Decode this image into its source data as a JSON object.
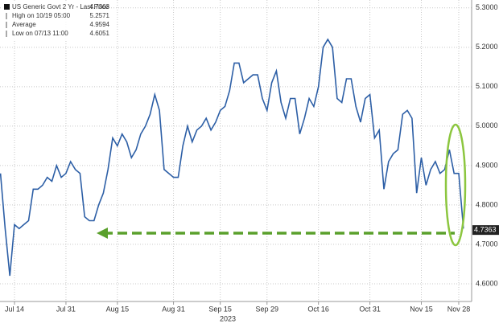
{
  "chart_data": {
    "type": "line",
    "legend": [
      {
        "label": "US Generic Govt 2 Yr - Last Price",
        "value": "4.7363"
      },
      {
        "label": "High on 10/19 05:00",
        "value": "5.2571"
      },
      {
        "label": "Average",
        "value": "4.9594"
      },
      {
        "label": "Low on 07/13 11:00",
        "value": "4.6051"
      }
    ],
    "categories": [
      null,
      null,
      null,
      "Jul 14",
      null,
      null,
      null,
      null,
      null,
      null,
      null,
      null,
      null,
      null,
      "Jul 31",
      null,
      null,
      null,
      null,
      null,
      null,
      null,
      null,
      null,
      null,
      "Aug 15",
      null,
      null,
      null,
      null,
      null,
      null,
      null,
      null,
      null,
      null,
      null,
      "Aug 31",
      null,
      null,
      null,
      null,
      null,
      null,
      null,
      null,
      null,
      "Sep 15",
      null,
      null,
      null,
      null,
      null,
      null,
      null,
      null,
      null,
      "Sep 29",
      null,
      null,
      null,
      null,
      null,
      null,
      null,
      null,
      null,
      null,
      "Oct 16",
      null,
      null,
      null,
      null,
      null,
      null,
      null,
      null,
      null,
      null,
      "Oct 31",
      null,
      null,
      null,
      null,
      null,
      null,
      null,
      null,
      null,
      null,
      "Nov 15",
      null,
      null,
      null,
      null,
      null,
      null,
      null,
      "Nov 28",
      null
    ],
    "x_year_label": "2023",
    "series": [
      {
        "name": "US Generic Govt 2 Yr - Last Price",
        "color": "#2d5fa6",
        "values": [
          4.88,
          4.74,
          4.62,
          4.75,
          4.74,
          4.75,
          4.76,
          4.84,
          4.84,
          4.85,
          4.87,
          4.86,
          4.9,
          4.87,
          4.88,
          4.91,
          4.89,
          4.88,
          4.77,
          4.76,
          4.76,
          4.8,
          4.83,
          4.89,
          4.97,
          4.95,
          4.98,
          4.96,
          4.92,
          4.94,
          4.98,
          5.0,
          5.03,
          5.08,
          5.04,
          4.89,
          4.88,
          4.87,
          4.87,
          4.95,
          5.0,
          4.96,
          4.99,
          5.0,
          5.02,
          4.99,
          5.01,
          5.04,
          5.05,
          5.09,
          5.16,
          5.16,
          5.11,
          5.12,
          5.13,
          5.13,
          5.07,
          5.04,
          5.11,
          5.14,
          5.06,
          5.02,
          5.07,
          5.07,
          4.98,
          5.02,
          5.07,
          5.05,
          5.1,
          5.2,
          5.22,
          5.2,
          5.07,
          5.06,
          5.12,
          5.12,
          5.05,
          5.01,
          5.07,
          5.08,
          4.97,
          4.99,
          4.84,
          4.91,
          4.93,
          4.94,
          5.03,
          5.04,
          5.02,
          4.83,
          4.92,
          4.85,
          4.89,
          4.91,
          4.88,
          4.89,
          4.94,
          4.88,
          4.88,
          4.74
        ]
      }
    ],
    "last_price": 4.7363,
    "ylim": [
      4.555,
      5.32
    ],
    "yticks": [
      {
        "value": 4.6,
        "label": "4.6000"
      },
      {
        "value": 4.7,
        "label": "4.7000"
      },
      {
        "value": 4.8,
        "label": "4.8000"
      },
      {
        "value": 4.9,
        "label": "4.9000"
      },
      {
        "value": 5.0,
        "label": "5.0000"
      },
      {
        "value": 5.1,
        "label": "5.1000"
      },
      {
        "value": 5.2,
        "label": "5.2000"
      },
      {
        "value": 5.3,
        "label": "5.3000"
      }
    ],
    "grid": true
  }
}
